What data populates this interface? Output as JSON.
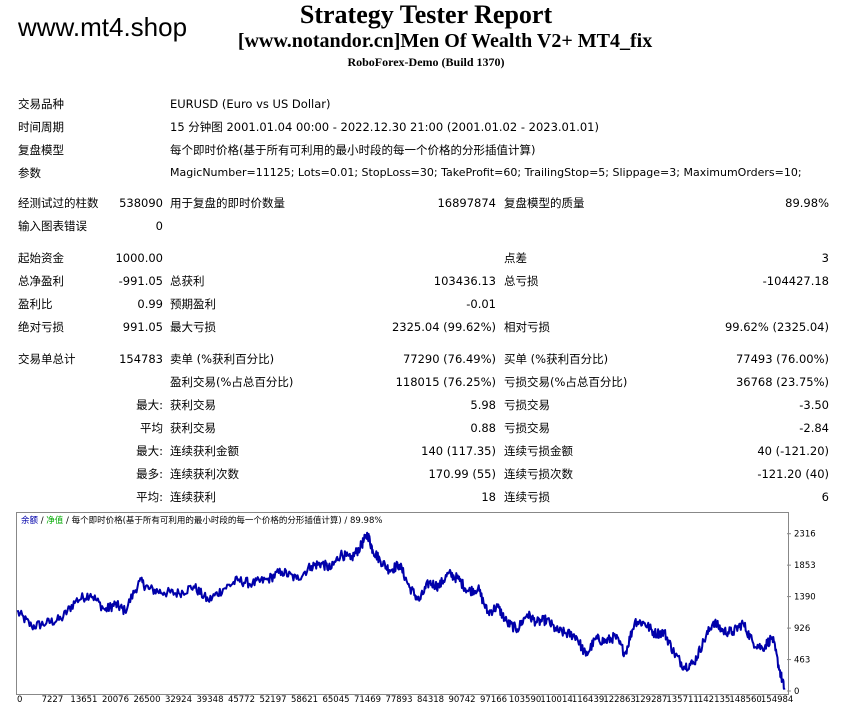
{
  "watermark": "www.mt4.shop",
  "title": "Strategy Tester Report",
  "subtitle": "[www.notandor.cn]Men Of Wealth V2+ MT4_fix",
  "build": "RoboForex-Demo (Build 1370)",
  "info": {
    "symbol_label": "交易品种",
    "symbol": "EURUSD (Euro vs US Dollar)",
    "period_label": "时间周期",
    "period": "15 分钟图 2001.01.04 00:00 - 2022.12.30 21:00 (2001.01.02 - 2023.01.01)",
    "model_label": "复盘模型",
    "model": "每个即时价格(基于所有可利用的最小时段的每一个价格的分形插值计算)",
    "params_label": "参数",
    "params": "MagicNumber=11125; Lots=0.01; StopLoss=30; TakeProfit=60; TrailingStop=5; Slippage=3; MaximumOrders=10;"
  },
  "stats": {
    "bars_label": "经测试过的柱数",
    "bars": "538090",
    "ticks_label": "用于复盘的即时价数量",
    "ticks": "16897874",
    "quality_label": "复盘模型的质量",
    "quality": "89.98%",
    "errors_label": "输入图表错误",
    "errors": "0",
    "deposit_label": "起始资金",
    "deposit": "1000.00",
    "spread_label": "点差",
    "spread": "3",
    "net_label": "总净盈利",
    "net": "-991.05",
    "gross_profit_label": "总获利",
    "gross_profit": "103436.13",
    "gross_loss_label": "总亏损",
    "gross_loss": "-104427.18",
    "pf_label": "盈利比",
    "pf": "0.99",
    "expected_label": "预期盈利",
    "expected": "-0.01",
    "abs_dd_label": "绝对亏损",
    "abs_dd": "991.05",
    "max_dd_label": "最大亏损",
    "max_dd": "2325.04 (99.62%)",
    "rel_dd_label": "相对亏损",
    "rel_dd": "99.62% (2325.04)",
    "total_trades_label": "交易单总计",
    "total_trades": "154783",
    "short_label": "卖单 (%获利百分比)",
    "short": "77290 (76.49%)",
    "long_label": "买单 (%获利百分比)",
    "long": "77493 (76.00%)",
    "profit_trades_label": "盈利交易(%占总百分比)",
    "profit_trades": "118015 (76.25%)",
    "loss_trades_label": "亏损交易(%占总百分比)",
    "loss_trades": "36768 (23.75%)",
    "largest_label": "最大:",
    "largest_profit_label": "获利交易",
    "largest_profit": "5.98",
    "largest_loss_label": "亏损交易",
    "largest_loss": "-3.50",
    "average_label": "平均",
    "average_profit_label": "获利交易",
    "average_profit": "0.88",
    "average_loss_label": "亏损交易",
    "average_loss": "-2.84",
    "max_label": "最大:",
    "max_cons_wins_money_label": "连续获利金额",
    "max_cons_wins_money": "140 (117.35)",
    "max_cons_losses_money_label": "连续亏损金额",
    "max_cons_losses_money": "40 (-121.20)",
    "maxim_label": "最多:",
    "max_cons_profit_label": "连续获利次数",
    "max_cons_profit": "170.99 (55)",
    "max_cons_loss_label": "连续亏损次数",
    "max_cons_loss": "-121.20 (40)",
    "avg_label": "平均:",
    "avg_cons_wins_label": "连续获利",
    "avg_cons_wins": "18",
    "avg_cons_losses_label": "连续亏损",
    "avg_cons_losses": "6"
  },
  "chart_data": {
    "type": "line",
    "header": {
      "balance": "余额",
      "sep1": " / ",
      "equity": "净值",
      "sep2": " / ",
      "model": "每个即时价格(基于所有可利用的最小时段的每一个价格的分形插值计算)",
      "sep3": " / ",
      "quality": "89.98%"
    },
    "colors": {
      "balance": "#0000aa",
      "equity": "#00aa00",
      "frame": "#888888"
    },
    "x_ticks": [
      "0",
      "7227",
      "13651",
      "20076",
      "26500",
      "32924",
      "39348",
      "45772",
      "52197",
      "58621",
      "65045",
      "71469",
      "77893",
      "84318",
      "90742",
      "97166",
      "103590",
      "110014",
      "116439",
      "122863",
      "129287",
      "135711",
      "142135",
      "148560",
      "154984"
    ],
    "y_ticks": [
      "2316",
      "1853",
      "1390",
      "926",
      "463",
      "0"
    ],
    "xlim": [
      0,
      157000
    ],
    "ylim": [
      0,
      2400
    ],
    "series": [
      {
        "name": "余额",
        "x": [
          0,
          3000,
          6000,
          9000,
          12000,
          15000,
          18000,
          20000,
          22000,
          25000,
          27000,
          30000,
          33000,
          36000,
          39000,
          42000,
          45000,
          48000,
          51000,
          54000,
          57000,
          60000,
          62000,
          64000,
          66000,
          68000,
          70000,
          71500,
          72500,
          74000,
          76000,
          78000,
          80000,
          82000,
          84000,
          86000,
          88000,
          90000,
          92000,
          94000,
          96000,
          98000,
          100000,
          102000,
          104000,
          106000,
          108000,
          110000,
          112000,
          114000,
          116000,
          118000,
          120000,
          122000,
          124000,
          126000,
          128000,
          130000,
          132000,
          134000,
          136000,
          138000,
          140000,
          142000,
          144000,
          146000,
          148000,
          150000,
          152000,
          154000,
          155500,
          156500
        ],
        "values": [
          1170,
          950,
          1000,
          1060,
          1330,
          1430,
          1190,
          1280,
          1180,
          1620,
          1500,
          1450,
          1440,
          1540,
          1330,
          1500,
          1630,
          1580,
          1640,
          1760,
          1650,
          1840,
          1880,
          1800,
          2020,
          1940,
          2120,
          2310,
          2080,
          1930,
          1780,
          1860,
          1530,
          1330,
          1600,
          1540,
          1730,
          1650,
          1470,
          1510,
          1150,
          1240,
          1000,
          910,
          1130,
          1010,
          1050,
          890,
          850,
          810,
          520,
          770,
          730,
          800,
          550,
          1030,
          1000,
          850,
          860,
          560,
          360,
          410,
          730,
          1020,
          880,
          870,
          1000,
          720,
          630,
          790,
          310,
          20
        ]
      }
    ]
  }
}
